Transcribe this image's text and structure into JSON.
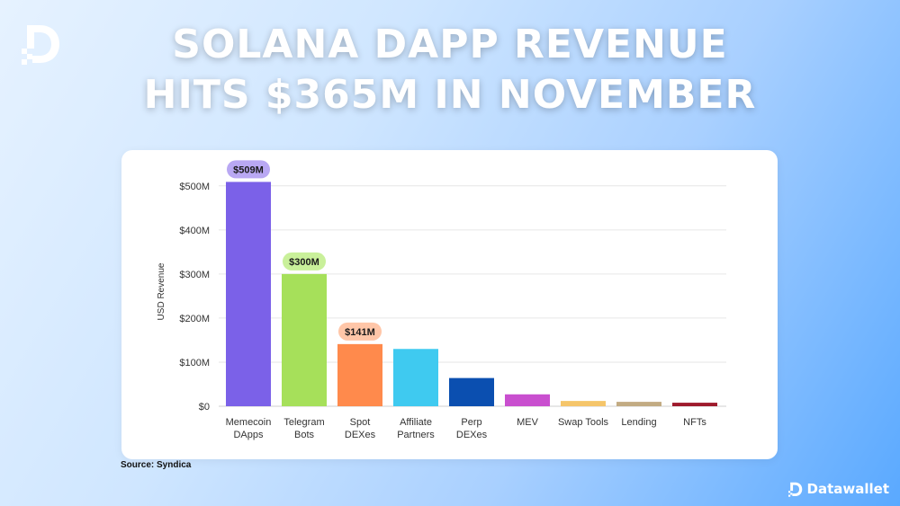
{
  "header": {
    "title_line1": "SOLANA DAPP REVENUE",
    "title_line2": "HITS $365M IN NOVEMBER"
  },
  "logo": {
    "icon": "datawallet-d-icon"
  },
  "footer": {
    "source": "Source: Syndica",
    "brand": "Datawallet",
    "brand_icon": "datawallet-d-icon"
  },
  "chart_data": {
    "type": "bar",
    "title": "",
    "xlabel": "",
    "ylabel": "USD Revenue",
    "ylim": [
      0,
      520
    ],
    "yticks": [
      0,
      100,
      200,
      300,
      400,
      500
    ],
    "ytick_labels": [
      "$0",
      "$100M",
      "$200M",
      "$300M",
      "$400M",
      "$500M"
    ],
    "unit": "USD millions",
    "grid": true,
    "categories": [
      [
        "Memecoin",
        "DApps"
      ],
      [
        "Telegram",
        "Bots"
      ],
      [
        "Spot",
        "DEXes"
      ],
      [
        "Affiliate",
        "Partners"
      ],
      [
        "Perp",
        "DEXes"
      ],
      [
        "MEV"
      ],
      [
        "Swap Tools"
      ],
      [
        "Lending"
      ],
      [
        "NFTs"
      ]
    ],
    "values": [
      509,
      300,
      141,
      130,
      64,
      27,
      12,
      10,
      8
    ],
    "colors": [
      "#7b61e8",
      "#a6e05a",
      "#ff8a4c",
      "#3fcaf0",
      "#0b4fb0",
      "#c94fcf",
      "#f5c56a",
      "#c2ab83",
      "#9e1a2c"
    ],
    "data_labels": [
      {
        "index": 0,
        "text": "$509M",
        "bg": "#b9a8f3"
      },
      {
        "index": 1,
        "text": "$300M",
        "bg": "#c9f09a"
      },
      {
        "index": 2,
        "text": "$141M",
        "bg": "#ffc6a8"
      }
    ]
  }
}
